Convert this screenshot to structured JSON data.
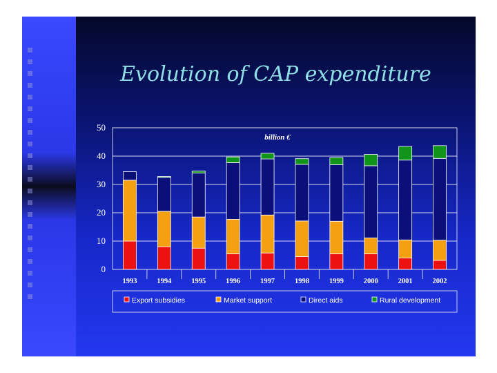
{
  "slide": {
    "title": "Evolution of CAP expenditure"
  },
  "chart_data": {
    "type": "bar",
    "stacked": true,
    "title": "Evolution of CAP expenditure",
    "unit_label": "billion €",
    "xlabel": "",
    "ylabel": "",
    "ylim": [
      0,
      50
    ],
    "yticks": [
      0,
      10,
      20,
      30,
      40,
      50
    ],
    "grid": true,
    "legend_position": "bottom",
    "categories": [
      "1993",
      "1994",
      "1995",
      "1996",
      "1997",
      "1998",
      "1999",
      "2000",
      "2001",
      "2002"
    ],
    "series": [
      {
        "name": "Export subsidies",
        "color": "#ee1111",
        "values": [
          10,
          8,
          7.5,
          5.5,
          5.8,
          4.5,
          5.5,
          5.5,
          4,
          3.2
        ]
      },
      {
        "name": "Market support",
        "color": "#f5a010",
        "values": [
          21.5,
          12.5,
          11,
          12.2,
          13.4,
          12.6,
          11.5,
          5.6,
          6.4,
          7.1
        ]
      },
      {
        "name": "Direct aids",
        "color": "#0b0f7a",
        "values": [
          3,
          12,
          15.5,
          20,
          19.8,
          20,
          20,
          25.5,
          28.2,
          28.9
        ]
      },
      {
        "name": "Rural development",
        "color": "#10941a",
        "values": [
          0,
          0.3,
          0.7,
          2,
          2,
          2,
          2.5,
          4,
          4.8,
          4.5
        ]
      }
    ]
  }
}
